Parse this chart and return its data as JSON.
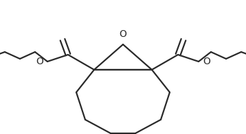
{
  "line_color": "#2a2a2a",
  "bg_color": "#ffffff",
  "line_width": 1.6,
  "figsize": [
    3.58,
    1.96
  ],
  "dpi": 100,
  "label_O_left": "O",
  "label_O_right": "O",
  "label_O_epoxide": "O",
  "font_size": 10
}
